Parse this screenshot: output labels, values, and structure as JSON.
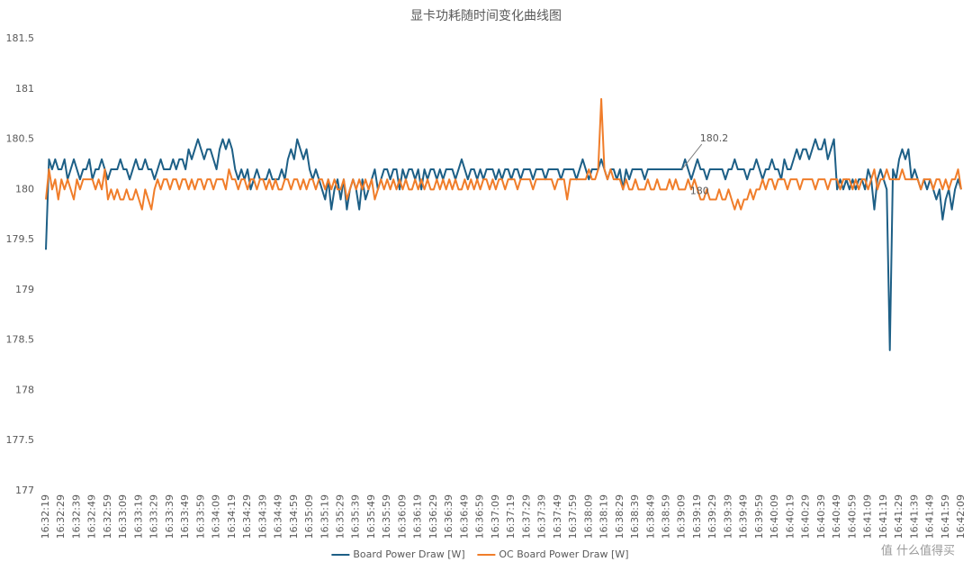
{
  "chart_data": {
    "type": "line",
    "title": "显卡功耗随时间变化曲线图",
    "watermark": "值 什么值得买",
    "ylim": [
      177,
      181.5
    ],
    "yticks": [
      177,
      177.5,
      178,
      178.5,
      179,
      179.5,
      180,
      180.5,
      181,
      181.5
    ],
    "grid": false,
    "legend": "bottom",
    "categories": [
      "16:32:19",
      null,
      null,
      null,
      null,
      "16:32:29",
      null,
      null,
      null,
      null,
      "16:32:39",
      null,
      null,
      null,
      null,
      "16:32:49",
      null,
      null,
      null,
      null,
      "16:32:59",
      null,
      null,
      null,
      null,
      "16:33:09",
      null,
      null,
      null,
      null,
      "16:33:19",
      null,
      null,
      null,
      null,
      "16:33:29",
      null,
      null,
      null,
      null,
      "16:33:39",
      null,
      null,
      null,
      null,
      "16:33:49",
      null,
      null,
      null,
      null,
      "16:33:59",
      null,
      null,
      null,
      null,
      "16:34:09",
      null,
      null,
      null,
      null,
      "16:34:19",
      null,
      null,
      null,
      null,
      "16:34:29",
      null,
      null,
      null,
      null,
      "16:34:39",
      null,
      null,
      null,
      null,
      "16:34:49",
      null,
      null,
      null,
      null,
      "16:34:59",
      null,
      null,
      null,
      null,
      "16:35:09",
      null,
      null,
      null,
      null,
      "16:35:19",
      null,
      null,
      null,
      null,
      "16:35:29",
      null,
      null,
      null,
      null,
      "16:35:39",
      null,
      null,
      null,
      null,
      "16:35:49",
      null,
      null,
      null,
      null,
      "16:35:59",
      null,
      null,
      null,
      null,
      "16:36:09",
      null,
      null,
      null,
      null,
      "16:36:19",
      null,
      null,
      null,
      null,
      "16:36:29",
      null,
      null,
      null,
      null,
      "16:36:39",
      null,
      null,
      null,
      null,
      "16:36:49",
      null,
      null,
      null,
      null,
      "16:36:59",
      null,
      null,
      null,
      null,
      "16:37:09",
      null,
      null,
      null,
      null,
      "16:37:19",
      null,
      null,
      null,
      null,
      "16:37:29",
      null,
      null,
      null,
      null,
      "16:37:39",
      null,
      null,
      null,
      null,
      "16:37:49",
      null,
      null,
      null,
      null,
      "16:37:59",
      null,
      null,
      null,
      null,
      "16:38:09",
      null,
      null,
      null,
      null,
      "16:38:19",
      null,
      null,
      null,
      null,
      "16:38:29",
      null,
      null,
      null,
      null,
      "16:38:39",
      null,
      null,
      null,
      null,
      "16:38:49",
      null,
      null,
      null,
      null,
      "16:38:59",
      null,
      null,
      null,
      null,
      "16:39:09",
      null,
      null,
      null,
      null,
      "16:39:19",
      null,
      null,
      null,
      null,
      "16:39:29",
      null,
      null,
      null,
      null,
      "16:39:39",
      null,
      null,
      null,
      null,
      "16:39:49",
      null,
      null,
      null,
      null,
      "16:39:59",
      null,
      null,
      null,
      null,
      "16:40:09",
      null,
      null,
      null,
      null,
      "16:40:19",
      null,
      null,
      null,
      null,
      "16:40:29",
      null,
      null,
      null,
      null,
      "16:40:39",
      null,
      null,
      null,
      null,
      "16:40:49",
      null,
      null,
      null,
      null,
      "16:40:59",
      null,
      null,
      null,
      null,
      "16:41:09",
      null,
      null,
      null,
      null,
      "16:41:19",
      null,
      null,
      null,
      null,
      "16:41:29",
      null,
      null,
      null,
      null,
      "16:41:39",
      null,
      null,
      null,
      null,
      "16:41:49",
      null,
      null,
      null,
      null,
      "16:41:59",
      null,
      null,
      null,
      null,
      "16:42:09"
    ],
    "series": [
      {
        "name": "Board Power Draw [W]",
        "color": "#1d5f86",
        "label_index": 205,
        "values": [
          179.4,
          180.3,
          180.2,
          180.3,
          180.2,
          180.2,
          180.3,
          180.1,
          180.2,
          180.3,
          180.2,
          180.1,
          180.2,
          180.2,
          180.3,
          180.1,
          180.2,
          180.2,
          180.3,
          180.2,
          180.1,
          180.2,
          180.2,
          180.2,
          180.3,
          180.2,
          180.2,
          180.1,
          180.2,
          180.3,
          180.2,
          180.2,
          180.3,
          180.2,
          180.2,
          180.1,
          180.2,
          180.3,
          180.2,
          180.2,
          180.2,
          180.3,
          180.2,
          180.3,
          180.3,
          180.2,
          180.4,
          180.3,
          180.4,
          180.5,
          180.4,
          180.3,
          180.4,
          180.4,
          180.3,
          180.2,
          180.4,
          180.5,
          180.4,
          180.5,
          180.4,
          180.2,
          180.1,
          180.2,
          180.1,
          180.2,
          180.0,
          180.1,
          180.2,
          180.1,
          180.1,
          180.1,
          180.2,
          180.1,
          180.1,
          180.1,
          180.2,
          180.1,
          180.3,
          180.4,
          180.3,
          180.5,
          180.4,
          180.3,
          180.4,
          180.2,
          180.1,
          180.2,
          180.1,
          180.0,
          179.9,
          180.1,
          179.8,
          180.0,
          180.1,
          179.9,
          180.1,
          179.8,
          180.0,
          180.1,
          180.0,
          179.8,
          180.1,
          179.9,
          180.0,
          180.1,
          180.2,
          180.0,
          180.1,
          180.2,
          180.2,
          180.1,
          180.2,
          180.2,
          180.0,
          180.2,
          180.1,
          180.2,
          180.2,
          180.1,
          180.2,
          180.0,
          180.2,
          180.1,
          180.2,
          180.2,
          180.1,
          180.2,
          180.1,
          180.2,
          180.2,
          180.2,
          180.1,
          180.2,
          180.3,
          180.2,
          180.1,
          180.2,
          180.2,
          180.1,
          180.2,
          180.1,
          180.2,
          180.2,
          180.2,
          180.1,
          180.2,
          180.1,
          180.2,
          180.2,
          180.1,
          180.2,
          180.2,
          180.1,
          180.2,
          180.2,
          180.2,
          180.1,
          180.2,
          180.2,
          180.2,
          180.1,
          180.2,
          180.2,
          180.2,
          180.2,
          180.1,
          180.2,
          180.2,
          180.2,
          180.2,
          180.1,
          180.2,
          180.3,
          180.2,
          180.1,
          180.2,
          180.2,
          180.2,
          180.3,
          180.2,
          180.1,
          180.2,
          180.2,
          180.1,
          180.2,
          180.0,
          180.2,
          180.1,
          180.2,
          180.2,
          180.2,
          180.2,
          180.1,
          180.2,
          180.2,
          180.2,
          180.2,
          180.2,
          180.2,
          180.2,
          180.2,
          180.2,
          180.2,
          180.2,
          180.2,
          180.3,
          180.2,
          180.1,
          180.2,
          180.3,
          180.2,
          180.2,
          180.1,
          180.2,
          180.2,
          180.2,
          180.2,
          180.2,
          180.1,
          180.2,
          180.2,
          180.3,
          180.2,
          180.2,
          180.2,
          180.1,
          180.2,
          180.2,
          180.3,
          180.2,
          180.1,
          180.2,
          180.2,
          180.3,
          180.2,
          180.2,
          180.1,
          180.3,
          180.2,
          180.2,
          180.3,
          180.4,
          180.3,
          180.4,
          180.4,
          180.3,
          180.4,
          180.5,
          180.4,
          180.4,
          180.5,
          180.3,
          180.4,
          180.5,
          180.0,
          180.1,
          180.0,
          180.1,
          180.0,
          180.1,
          180.0,
          180.1,
          180.1,
          180.0,
          180.2,
          180.1,
          179.8,
          180.1,
          180.2,
          180.1,
          180.0,
          178.4,
          180.2,
          180.1,
          180.3,
          180.4,
          180.3,
          180.4,
          180.1,
          180.2,
          180.1,
          180.0,
          180.1,
          180.0,
          180.1,
          180.0,
          179.9,
          180.0,
          179.7,
          179.9,
          180.0,
          179.8,
          180.0,
          180.1,
          180.0
        ]
      },
      {
        "name": "OC Board Power Draw [W]",
        "color": "#f07d2a",
        "label_index": 205,
        "values": [
          179.9,
          180.2,
          180.0,
          180.1,
          179.9,
          180.1,
          180.0,
          180.1,
          180.0,
          179.9,
          180.1,
          180.0,
          180.1,
          180.1,
          180.1,
          180.1,
          180.0,
          180.1,
          180.0,
          180.2,
          179.9,
          180.0,
          179.9,
          180.0,
          179.9,
          179.9,
          180.0,
          179.9,
          179.9,
          180.0,
          179.9,
          179.8,
          180.0,
          179.9,
          179.8,
          180.0,
          180.1,
          180.0,
          180.1,
          180.1,
          180.0,
          180.1,
          180.1,
          180.0,
          180.1,
          180.1,
          180.0,
          180.1,
          180.0,
          180.1,
          180.1,
          180.0,
          180.1,
          180.1,
          180.0,
          180.1,
          180.1,
          180.1,
          180.0,
          180.2,
          180.1,
          180.1,
          180.0,
          180.1,
          180.1,
          180.0,
          180.1,
          180.1,
          180.0,
          180.1,
          180.1,
          180.0,
          180.1,
          180.0,
          180.1,
          180.0,
          180.0,
          180.1,
          180.1,
          180.0,
          180.1,
          180.1,
          180.0,
          180.1,
          180.0,
          180.1,
          180.1,
          180.0,
          180.1,
          180.1,
          180.0,
          180.1,
          180.0,
          180.1,
          180.0,
          180.0,
          180.1,
          179.9,
          180.0,
          180.1,
          180.0,
          180.1,
          180.0,
          180.1,
          180.0,
          180.1,
          179.9,
          180.0,
          180.1,
          180.0,
          180.1,
          180.0,
          180.1,
          180.0,
          180.1,
          180.0,
          180.1,
          180.0,
          180.0,
          180.1,
          180.0,
          180.1,
          180.0,
          180.1,
          180.0,
          180.0,
          180.1,
          180.0,
          180.1,
          180.0,
          180.1,
          180.0,
          180.1,
          180.0,
          180.0,
          180.1,
          180.0,
          180.1,
          180.0,
          180.1,
          180.0,
          180.1,
          180.1,
          180.0,
          180.1,
          180.0,
          180.1,
          180.1,
          180.0,
          180.1,
          180.1,
          180.1,
          180.0,
          180.1,
          180.1,
          180.1,
          180.1,
          180.0,
          180.1,
          180.1,
          180.1,
          180.1,
          180.1,
          180.1,
          180.0,
          180.1,
          180.1,
          180.1,
          179.9,
          180.1,
          180.1,
          180.1,
          180.1,
          180.1,
          180.1,
          180.2,
          180.1,
          180.1,
          180.2,
          180.9,
          180.2,
          180.1,
          180.2,
          180.1,
          180.1,
          180.1,
          180.0,
          180.1,
          180.0,
          180.0,
          180.1,
          180.0,
          180.0,
          180.0,
          180.1,
          180.0,
          180.0,
          180.1,
          180.0,
          180.0,
          180.0,
          180.1,
          180.0,
          180.1,
          180.0,
          180.0,
          180.0,
          180.1,
          180.0,
          180.1,
          180.0,
          179.9,
          179.9,
          180.0,
          179.9,
          179.9,
          179.9,
          180.0,
          179.9,
          179.9,
          180.0,
          179.9,
          179.8,
          179.9,
          179.8,
          179.9,
          179.9,
          180.0,
          179.9,
          180.0,
          180.0,
          180.1,
          180.0,
          180.1,
          180.1,
          180.0,
          180.1,
          180.1,
          180.1,
          180.0,
          180.1,
          180.1,
          180.1,
          180.0,
          180.1,
          180.1,
          180.1,
          180.1,
          180.0,
          180.1,
          180.1,
          180.1,
          180.0,
          180.1,
          180.1,
          180.1,
          180.0,
          180.1,
          180.1,
          180.1,
          180.0,
          180.1,
          180.0,
          180.1,
          180.1,
          180.0,
          180.1,
          180.2,
          180.0,
          180.1,
          180.1,
          180.2,
          180.1,
          180.1,
          180.1,
          180.1,
          180.2,
          180.1,
          180.1,
          180.1,
          180.1,
          180.1,
          180.0,
          180.1,
          180.1,
          180.1,
          180.0,
          180.1,
          180.1,
          180.0,
          180.1,
          180.0,
          180.1,
          180.1,
          180.2,
          180.0
        ]
      }
    ]
  }
}
